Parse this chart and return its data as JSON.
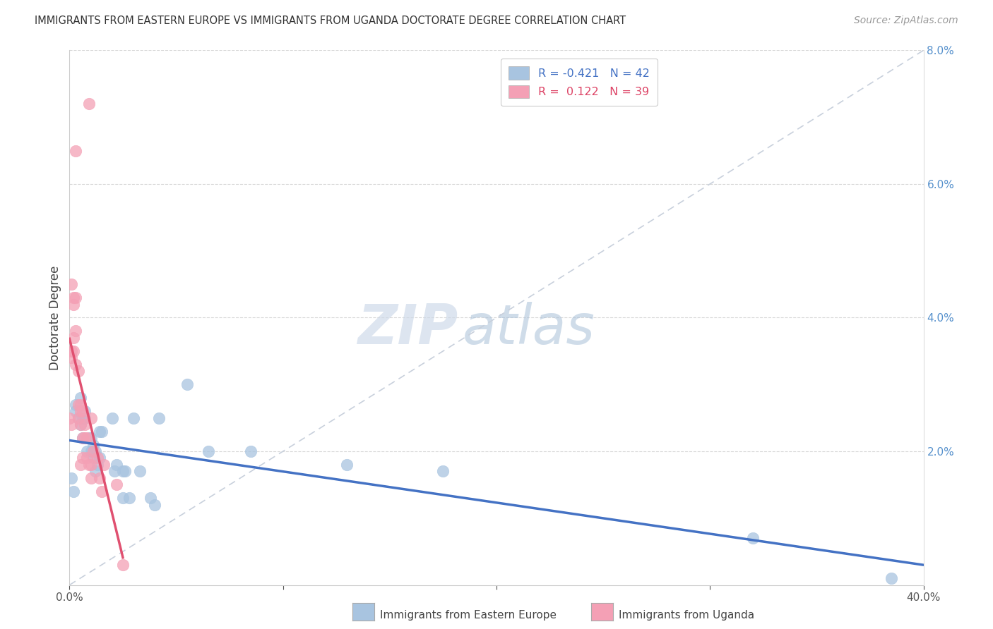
{
  "title": "IMMIGRANTS FROM EASTERN EUROPE VS IMMIGRANTS FROM UGANDA DOCTORATE DEGREE CORRELATION CHART",
  "source": "Source: ZipAtlas.com",
  "ylabel": "Doctorate Degree",
  "legend_labels": [
    "Immigrants from Eastern Europe",
    "Immigrants from Uganda"
  ],
  "r_blue": -0.421,
  "n_blue": 42,
  "r_pink": 0.122,
  "n_pink": 39,
  "blue_color": "#a8c4e0",
  "pink_color": "#f4a0b5",
  "blue_line_color": "#4472c4",
  "pink_line_color": "#e05070",
  "dashed_line_color": "#c8d0dc",
  "watermark_zip": "ZIP",
  "watermark_atlas": "atlas",
  "blue_x": [
    0.001,
    0.002,
    0.003,
    0.003,
    0.004,
    0.005,
    0.005,
    0.006,
    0.006,
    0.007,
    0.007,
    0.008,
    0.009,
    0.01,
    0.01,
    0.011,
    0.011,
    0.012,
    0.012,
    0.013,
    0.014,
    0.014,
    0.015,
    0.02,
    0.021,
    0.022,
    0.025,
    0.025,
    0.026,
    0.028,
    0.03,
    0.033,
    0.038,
    0.04,
    0.042,
    0.055,
    0.065,
    0.085,
    0.13,
    0.175,
    0.32,
    0.385
  ],
  "blue_y": [
    0.016,
    0.014,
    0.027,
    0.026,
    0.025,
    0.028,
    0.024,
    0.022,
    0.025,
    0.026,
    0.025,
    0.02,
    0.022,
    0.02,
    0.022,
    0.021,
    0.019,
    0.02,
    0.017,
    0.018,
    0.023,
    0.019,
    0.023,
    0.025,
    0.017,
    0.018,
    0.017,
    0.013,
    0.017,
    0.013,
    0.025,
    0.017,
    0.013,
    0.012,
    0.025,
    0.03,
    0.02,
    0.02,
    0.018,
    0.017,
    0.007,
    0.001
  ],
  "pink_x": [
    0.0,
    0.001,
    0.001,
    0.001,
    0.001,
    0.002,
    0.002,
    0.002,
    0.002,
    0.003,
    0.003,
    0.003,
    0.003,
    0.004,
    0.004,
    0.004,
    0.005,
    0.005,
    0.005,
    0.005,
    0.006,
    0.006,
    0.006,
    0.007,
    0.007,
    0.008,
    0.008,
    0.009,
    0.009,
    0.01,
    0.01,
    0.01,
    0.011,
    0.013,
    0.014,
    0.015,
    0.016,
    0.022,
    0.025
  ],
  "pink_y": [
    0.025,
    0.024,
    0.034,
    0.035,
    0.045,
    0.035,
    0.042,
    0.037,
    0.043,
    0.033,
    0.038,
    0.043,
    0.065,
    0.025,
    0.027,
    0.032,
    0.024,
    0.026,
    0.027,
    0.018,
    0.022,
    0.026,
    0.019,
    0.024,
    0.022,
    0.019,
    0.022,
    0.018,
    0.072,
    0.025,
    0.018,
    0.016,
    0.02,
    0.019,
    0.016,
    0.014,
    0.018,
    0.015,
    0.003
  ],
  "xlim": [
    0.0,
    0.4
  ],
  "ylim": [
    0.0,
    0.08
  ],
  "xticks": [
    0.0,
    0.1,
    0.2,
    0.3,
    0.4
  ],
  "xtick_labels": [
    "0.0%",
    "",
    "",
    "",
    "40.0%"
  ],
  "yticks_right": [
    0.02,
    0.04,
    0.06,
    0.08
  ],
  "ytick_labels_right": [
    "2.0%",
    "4.0%",
    "6.0%",
    "8.0%"
  ],
  "grid_yticks": [
    0.02,
    0.04,
    0.06,
    0.08
  ],
  "background_color": "#ffffff",
  "grid_color": "#d8d8d8"
}
